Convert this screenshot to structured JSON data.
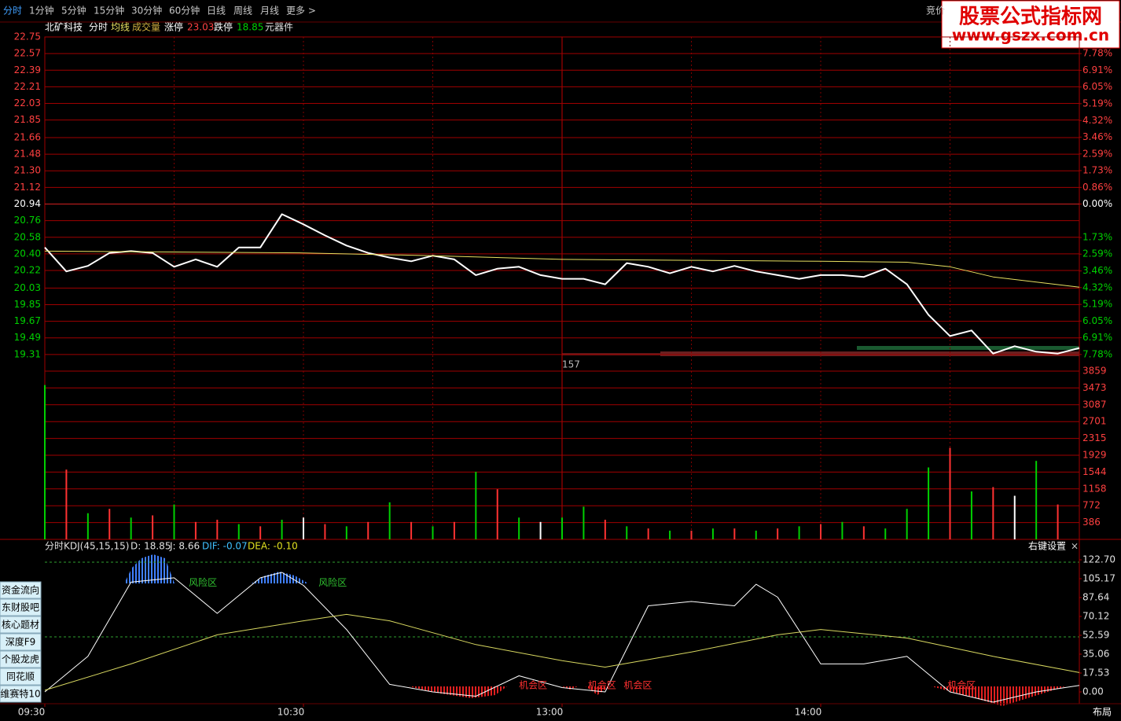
{
  "toolbar": {
    "tabs": [
      "分时",
      "1分钟",
      "5分钟",
      "15分钟",
      "30分钟",
      "60分钟",
      "日线",
      "周线",
      "月线",
      "更多 >"
    ],
    "right": "竞价"
  },
  "watermark": {
    "title": "股票公式指标网",
    "url": "www.gszx.com.cn"
  },
  "header": {
    "stock": "北矿科技",
    "limit_up_label": "涨停",
    "limit_up": 23.03,
    "limit_down_label": "跌停",
    "limit_down": 18.85,
    "sector": "元器件"
  },
  "chart_data": [
    {
      "type": "line",
      "x": [
        0,
        5,
        10,
        15,
        20,
        25,
        30,
        35,
        40,
        45,
        50,
        55,
        60,
        65,
        70,
        75,
        80,
        85,
        90,
        95,
        100,
        105,
        110,
        115,
        120,
        125,
        130,
        135,
        140,
        145,
        150,
        155,
        160,
        165,
        170,
        175,
        180,
        185,
        190,
        195,
        200,
        205,
        210,
        215,
        220,
        225,
        230,
        235,
        240
      ],
      "xlim": [
        0,
        240
      ],
      "xgrid": [
        30,
        60,
        90,
        120,
        150,
        180,
        210
      ],
      "series": [
        {
          "name": "分时",
          "color": "#ffffff",
          "values": [
            20.47,
            20.21,
            20.27,
            20.41,
            20.43,
            20.41,
            20.26,
            20.34,
            20.26,
            20.47,
            20.47,
            20.83,
            20.72,
            20.6,
            20.49,
            20.41,
            20.36,
            20.32,
            20.38,
            20.34,
            20.17,
            20.24,
            20.26,
            20.17,
            20.13,
            20.13,
            20.07,
            20.3,
            20.26,
            20.19,
            20.26,
            20.21,
            20.27,
            20.21,
            20.17,
            20.13,
            20.17,
            20.17,
            20.15,
            20.24,
            20.07,
            19.74,
            19.51,
            19.57,
            19.32,
            19.4,
            19.34,
            19.32,
            19.38
          ]
        },
        {
          "name": "均线",
          "color": "#e8e060",
          "x": [
            0,
            30,
            60,
            90,
            120,
            150,
            180,
            200,
            210,
            220,
            240
          ],
          "values": [
            20.43,
            20.42,
            20.41,
            20.38,
            20.34,
            20.33,
            20.32,
            20.31,
            20.26,
            20.15,
            20.04
          ]
        }
      ],
      "ylim": [
        19.13,
        22.75
      ],
      "yticks": [
        22.75,
        22.57,
        22.39,
        {
          "value": 22.21,
          "label": "22.21"
        },
        22.03,
        21.85,
        21.66,
        21.48,
        {
          "value": 21.3,
          "label": "21.30"
        },
        21.12,
        20.94,
        20.76,
        20.58,
        {
          "value": 20.4,
          "label": "20.40"
        },
        20.22,
        20.03,
        19.85,
        19.67,
        19.49,
        19.31
      ],
      "y2lim": [
        -8.64,
        8.64
      ],
      "y2ticks": [
        {
          "value": 7.78,
          "label": "7.78%"
        },
        {
          "value": 6.91,
          "label": "6.91%"
        },
        {
          "value": 6.05,
          "label": "6.05%"
        },
        {
          "value": 5.19,
          "label": "5.19%"
        },
        {
          "value": 4.32,
          "label": "4.32%"
        },
        {
          "value": 3.46,
          "label": "3.46%"
        },
        {
          "value": 2.59,
          "label": "2.59%"
        },
        {
          "value": 1.73,
          "label": "1.73%"
        },
        {
          "value": 0.86,
          "label": "0.86%"
        },
        {
          "value": 0,
          "label": "0.00%"
        },
        {
          "value": -1.73,
          "label": "1.73%"
        },
        {
          "value": -2.59,
          "label": "2.59%"
        },
        {
          "value": -3.46,
          "label": "3.46%"
        },
        {
          "value": -4.32,
          "label": "4.32%"
        },
        {
          "value": -5.19,
          "label": "5.19%"
        },
        {
          "value": -6.05,
          "label": "6.05%"
        },
        {
          "value": -6.91,
          "label": "6.91%"
        },
        {
          "value": -7.78,
          "label": "7.78%"
        }
      ],
      "annotation": 157
    },
    {
      "type": "bar",
      "title": "成交量",
      "x": [
        0,
        5,
        10,
        15,
        20,
        25,
        30,
        35,
        40,
        45,
        50,
        55,
        60,
        65,
        70,
        75,
        80,
        85,
        90,
        95,
        100,
        105,
        110,
        115,
        120,
        125,
        130,
        135,
        140,
        145,
        150,
        155,
        160,
        165,
        170,
        175,
        180,
        185,
        190,
        195,
        200,
        205,
        210,
        215,
        220,
        225,
        230,
        235
      ],
      "values": [
        3540,
        1600,
        600,
        700,
        500,
        550,
        800,
        400,
        450,
        350,
        300,
        450,
        500,
        350,
        300,
        400,
        850,
        400,
        300,
        400,
        1550,
        1150,
        500,
        400,
        500,
        750,
        450,
        300,
        250,
        200,
        200,
        250,
        250,
        200,
        250,
        300,
        350,
        400,
        300,
        250,
        700,
        1650,
        2100,
        1100,
        1200,
        1000,
        1800,
        800
      ],
      "colors": [
        "#00d000",
        "#ff3232",
        "#00d000",
        "#ff3232",
        "#00d000",
        "#ff3232",
        "#00d000",
        "#ff3232",
        "#ff3232",
        "#00d000",
        "#ff3232",
        "#00d000",
        "#ffffff",
        "#ff3232",
        "#00d000",
        "#ff3232",
        "#00d000",
        "#ff3232",
        "#00d000",
        "#ff3232",
        "#00d000",
        "#ff3232",
        "#00d000",
        "#ffffff",
        "#00d000",
        "#00d000",
        "#ff3232",
        "#00d000",
        "#ff3232",
        "#00d000",
        "#ff3232",
        "#00d000",
        "#ff3232",
        "#00d000",
        "#ff3232",
        "#00d000",
        "#ff3232",
        "#00d000",
        "#ff3232",
        "#00d000",
        "#00d000",
        "#00d000",
        "#ff3232",
        "#00d000",
        "#ff3232",
        "#ffffff",
        "#00d000",
        "#ff3232"
      ],
      "ylim": [
        0,
        3859
      ],
      "yticks": [
        386,
        772,
        1158,
        1544,
        1929,
        2315,
        2701,
        3087,
        3473,
        3859
      ]
    },
    {
      "type": "line",
      "title": "分时KDJ(45,15,15)",
      "stats": [
        "D: 18.85",
        "J: 8.66",
        "DIF: -0.07",
        "DEA: -0.10"
      ],
      "settings": "右键设置",
      "close": "×",
      "xlim": [
        0,
        240
      ],
      "series": [
        {
          "color": "#ffffff",
          "x": [
            0,
            10,
            20,
            30,
            40,
            50,
            55,
            60,
            70,
            80,
            90,
            100,
            110,
            120,
            130,
            140,
            150,
            160,
            165,
            170,
            180,
            190,
            200,
            210,
            220,
            230,
            240
          ],
          "values": [
            0,
            33,
            102,
            106,
            73,
            106,
            111,
            99,
            58,
            7,
            0,
            -4,
            15,
            4,
            0,
            80,
            84,
            80,
            100,
            88,
            26,
            26,
            33,
            0,
            -9.5,
            0,
            6
          ]
        },
        {
          "color": "#d8d860",
          "x": [
            0,
            20,
            40,
            60,
            70,
            80,
            100,
            120,
            130,
            150,
            170,
            180,
            200,
            220,
            240
          ],
          "values": [
            1.5,
            26,
            53,
            66,
            72,
            66,
            44,
            29,
            23,
            37,
            53,
            58,
            50,
            33,
            18
          ]
        }
      ],
      "ylim": [
        -10.96,
        141.7
      ],
      "yticks": [
        {
          "value": 122.7,
          "label": "122.70"
        },
        105.17,
        87.64,
        70.12,
        52.59,
        35.06,
        17.53,
        {
          "value": 0,
          "label": "0.00"
        }
      ],
      "xticks": [
        {
          "value": 0,
          "label": "09:30"
        },
        {
          "value": 60,
          "label": "10:30"
        },
        {
          "value": 120,
          "label": "13:00"
        },
        {
          "value": 180,
          "label": "14:00"
        }
      ],
      "annotations": [
        {
          "text": "风险区",
          "x": 33.4,
          "y": 101
        },
        {
          "text": "风险区",
          "x": 63.5,
          "y": 101
        },
        {
          "text": "机会区",
          "x": 110,
          "y": 6
        },
        {
          "text": "机会区",
          "x": 126,
          "y": 6
        },
        {
          "text": "机会区",
          "x": 134.3,
          "y": 6
        },
        {
          "text": "机会区",
          "x": 209.4,
          "y": 6
        }
      ]
    }
  ],
  "sidebar": [
    "资金流向",
    "东财股吧",
    "核心题材",
    "深度F9",
    "个股龙虎",
    "同花顺",
    "维赛特10"
  ],
  "footer": {
    "layout": "布局"
  }
}
